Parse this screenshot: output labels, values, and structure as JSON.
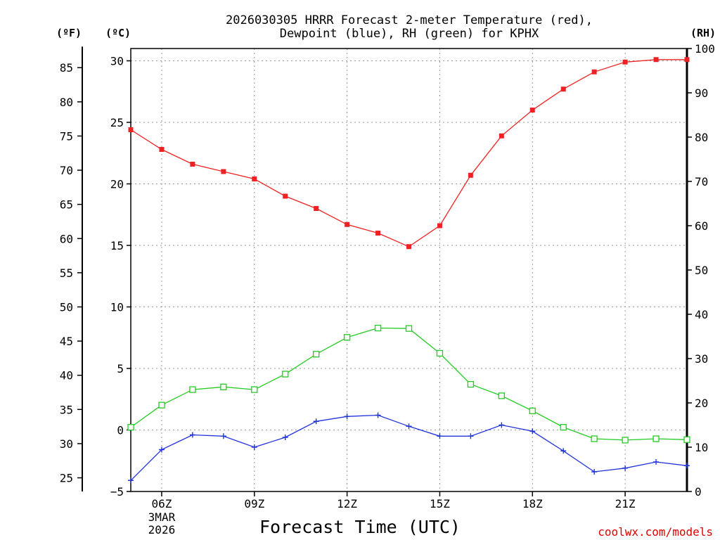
{
  "chart_data": {
    "type": "line",
    "title_lines": [
      "2026030305 HRRR Forecast 2-meter Temperature (red),",
      "Dewpoint (blue), RH (green) for KPHX"
    ],
    "xlabel": "Forecast Time (UTC)",
    "credit": "coolwx.com/models",
    "x_hours": [
      5,
      6,
      7,
      8,
      9,
      10,
      11,
      12,
      13,
      14,
      15,
      16,
      17,
      18,
      19,
      20,
      21,
      22,
      23
    ],
    "x_range": [
      5,
      23
    ],
    "x_ticks": [
      {
        "hour": 6,
        "label": "06Z",
        "sub": [
          "3MAR",
          "2026"
        ]
      },
      {
        "hour": 9,
        "label": "09Z",
        "sub": []
      },
      {
        "hour": 12,
        "label": "12Z",
        "sub": []
      },
      {
        "hour": 15,
        "label": "15Z",
        "sub": []
      },
      {
        "hour": 18,
        "label": "18Z",
        "sub": []
      },
      {
        "hour": 21,
        "label": "21Z",
        "sub": []
      }
    ],
    "axes": {
      "celsius": {
        "unit_label": "(ºC)",
        "range": [
          -5,
          31
        ],
        "ticks": [
          "30",
          "25",
          "20",
          "15",
          "10",
          "5",
          "0",
          "−5"
        ],
        "tick_values": [
          30,
          25,
          20,
          15,
          10,
          5,
          0,
          -5
        ]
      },
      "fahrenheit": {
        "unit_label": "(ºF)",
        "ticks": [
          "85",
          "80",
          "75",
          "70",
          "65",
          "60",
          "55",
          "50",
          "45",
          "40",
          "35",
          "30",
          "25"
        ],
        "tick_values": [
          85,
          80,
          75,
          70,
          65,
          60,
          55,
          50,
          45,
          40,
          35,
          30,
          25
        ]
      },
      "rh": {
        "unit_label": "(RH)",
        "range": [
          0,
          100
        ],
        "ticks": [
          "100",
          "90",
          "80",
          "70",
          "60",
          "50",
          "40",
          "30",
          "20",
          "10",
          "0"
        ],
        "tick_values": [
          100,
          90,
          80,
          70,
          60,
          50,
          40,
          30,
          20,
          10,
          0
        ]
      }
    },
    "series": [
      {
        "name": "Temperature",
        "axis": "celsius",
        "color": "#ee2222",
        "marker": "filled-square",
        "values": [
          24.4,
          22.8,
          21.6,
          21.0,
          20.4,
          19.0,
          18.0,
          16.7,
          16.0,
          14.9,
          16.6,
          20.7,
          23.9,
          26.0,
          27.7,
          29.1,
          29.9,
          30.1,
          30.1
        ]
      },
      {
        "name": "Dewpoint",
        "axis": "celsius",
        "color": "#2233dd",
        "marker": "plus",
        "values": [
          -4.1,
          -1.6,
          -0.4,
          -0.5,
          -1.4,
          -0.6,
          0.7,
          1.1,
          1.2,
          0.3,
          -0.5,
          -0.5,
          0.4,
          -0.1,
          -1.7,
          -3.4,
          -3.1,
          -2.6,
          -2.9
        ]
      },
      {
        "name": "RH",
        "axis": "rh",
        "color": "#22cc22",
        "marker": "open-square",
        "values": [
          14.5,
          19.5,
          23.0,
          23.6,
          23.0,
          26.5,
          31.0,
          34.8,
          36.9,
          36.8,
          31.2,
          24.2,
          21.6,
          18.2,
          14.5,
          11.9,
          11.6,
          11.9,
          11.7
        ]
      }
    ]
  }
}
